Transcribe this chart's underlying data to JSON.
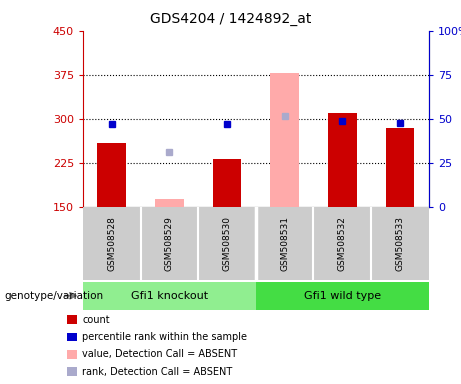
{
  "title": "GDS4204 / 1424892_at",
  "samples": [
    "GSM508528",
    "GSM508529",
    "GSM508530",
    "GSM508531",
    "GSM508532",
    "GSM508533"
  ],
  "ylim_left": [
    150,
    450
  ],
  "ylim_right": [
    0,
    100
  ],
  "yticks_left": [
    150,
    225,
    300,
    375,
    450
  ],
  "yticks_right": [
    0,
    25,
    50,
    75,
    100
  ],
  "count_values": [
    260,
    null,
    232,
    null,
    311,
    284
  ],
  "rank_values": [
    291,
    null,
    291,
    null,
    297,
    293
  ],
  "absent_value_values": [
    null,
    165,
    null,
    378,
    null,
    null
  ],
  "absent_rank_values": [
    null,
    244,
    null,
    305,
    null,
    null
  ],
  "count_color": "#cc0000",
  "rank_color": "#0000cc",
  "absent_value_color": "#ffaaaa",
  "absent_rank_color": "#aaaacc",
  "group_ko_color": "#90ee90",
  "group_wt_color": "#44dd44",
  "sample_area_color": "#cccccc",
  "legend_items": [
    {
      "color": "#cc0000",
      "label": "count"
    },
    {
      "color": "#0000cc",
      "label": "percentile rank within the sample"
    },
    {
      "color": "#ffaaaa",
      "label": "value, Detection Call = ABSENT"
    },
    {
      "color": "#aaaacc",
      "label": "rank, Detection Call = ABSENT"
    }
  ]
}
